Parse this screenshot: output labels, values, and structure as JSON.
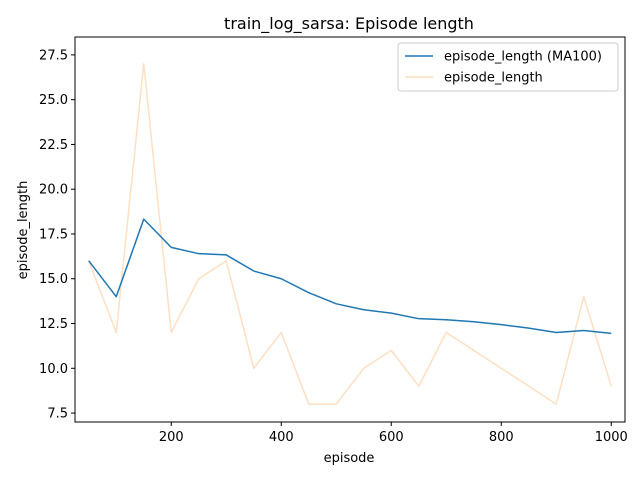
{
  "chart_data": {
    "type": "line",
    "title": "train_log_sarsa: Episode length",
    "xlabel": "episode",
    "ylabel": "episode_length",
    "xlim": [
      25,
      1025
    ],
    "ylim": [
      7.0,
      28.5
    ],
    "xticks": [
      200,
      400,
      600,
      800,
      1000
    ],
    "yticks": [
      7.5,
      10.0,
      12.5,
      15.0,
      17.5,
      20.0,
      22.5,
      25.0,
      27.5
    ],
    "grid": false,
    "legend_placement": "top-right",
    "series": [
      {
        "name": "episode_length (MA100)",
        "color": "#1f77b4",
        "opacity": 1.0,
        "x": [
          50,
          100,
          150,
          200,
          250,
          300,
          350,
          400,
          450,
          500,
          550,
          600,
          650,
          700,
          750,
          800,
          850,
          900,
          950,
          1000
        ],
        "y": [
          16.0,
          14.0,
          18.33,
          16.75,
          16.4,
          16.33,
          15.43,
          15.0,
          14.22,
          13.6,
          13.27,
          13.08,
          12.77,
          12.71,
          12.6,
          12.44,
          12.24,
          12.0,
          12.11,
          11.95
        ]
      },
      {
        "name": "episode_length",
        "color": "#ff7f0e",
        "opacity": 0.25,
        "x": [
          50,
          100,
          150,
          200,
          250,
          300,
          350,
          400,
          450,
          500,
          550,
          600,
          650,
          700,
          750,
          800,
          850,
          900,
          950,
          1000
        ],
        "y": [
          16,
          12,
          27,
          12,
          15,
          16,
          10,
          12,
          8,
          8,
          10,
          11,
          9,
          12,
          11,
          10,
          9,
          8,
          14,
          9
        ]
      }
    ]
  }
}
